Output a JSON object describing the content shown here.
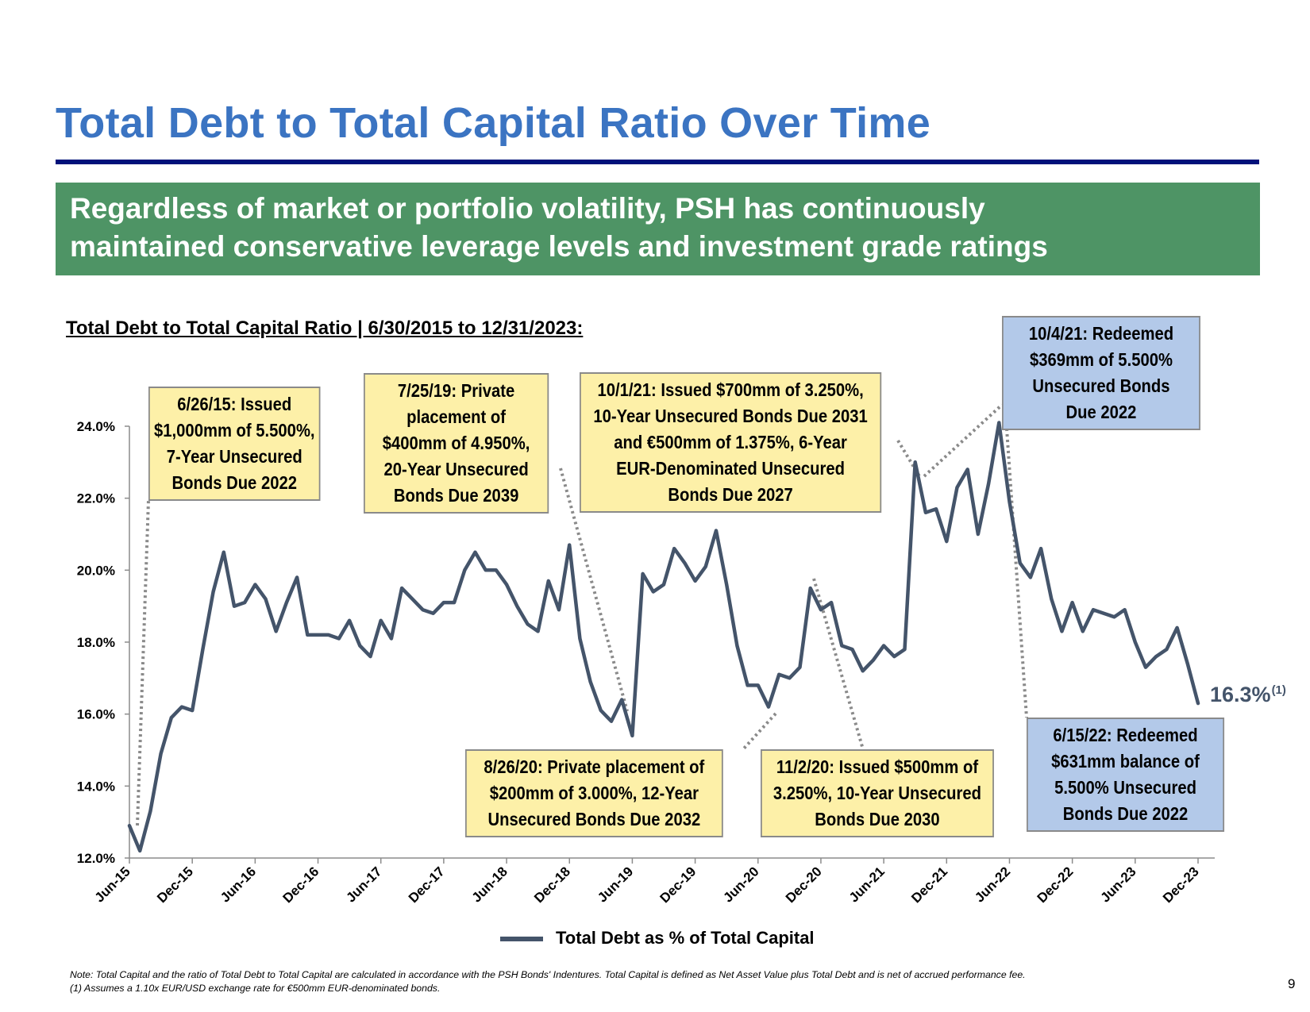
{
  "title": "Total Debt to Total Capital Ratio Over Time",
  "banner": {
    "line1": "Regardless of market or portfolio volatility, PSH has continuously",
    "line2": "maintained conservative leverage levels and investment grade ratings"
  },
  "subtitle": "Total Debt to Total Capital Ratio | 6/30/2015 to 12/31/2023:",
  "callouts": {
    "c1": [
      "6/26/15: Issued",
      "$1,000mm of 5.500%,",
      "7-Year Unsecured",
      "Bonds Due 2022"
    ],
    "c2": [
      "7/25/19: Private",
      "placement of",
      "$400mm of 4.950%,",
      "20-Year Unsecured",
      "Bonds Due 2039"
    ],
    "c3": [
      "10/1/21: Issued $700mm of 3.250%,",
      "10-Year Unsecured Bonds Due 2031",
      "and €500mm of 1.375%, 6-Year",
      "EUR-Denominated Unsecured",
      "Bonds Due 2027"
    ],
    "c4": [
      "10/4/21: Redeemed",
      "$369mm of 5.500%",
      "Unsecured Bonds",
      "Due 2022"
    ],
    "c5": [
      "8/26/20: Private placement of",
      "$200mm of 3.000%, 12-Year",
      "Unsecured Bonds Due 2032"
    ],
    "c6": [
      "11/2/20: Issued $500mm of",
      "3.250%, 10-Year Unsecured",
      "Bonds Due 2030"
    ],
    "c7": [
      "6/15/22: Redeemed",
      "$631mm balance of",
      "5.500% Unsecured",
      "Bonds Due 2022"
    ]
  },
  "end_label": {
    "value": "16.3%",
    "footnote": "(1)"
  },
  "legend_label": "Total Debt as % of Total Capital",
  "notes": [
    "Note: Total Capital and the ratio of Total Debt to Total Capital are calculated in accordance with the PSH Bonds' Indentures. Total Capital is defined as Net Asset Value plus Total Debt and is net of accrued performance fee.",
    "(1) Assumes a 1.10x EUR/USD exchange rate for €500mm EUR-denominated bonds."
  ],
  "page_number": "9",
  "colors": {
    "series": "#44546a",
    "title": "#3b74c2",
    "banner": "#4e9465",
    "rule": "#00127a"
  },
  "chart_data": {
    "type": "line",
    "title": "Total Debt to Total Capital Ratio | 6/30/2015 to 12/31/2023:",
    "series": [
      {
        "name": "Total Debt as % of Total Capital",
        "values": [
          12.9,
          12.2,
          13.3,
          14.9,
          15.9,
          16.2,
          16.1,
          17.8,
          19.4,
          20.5,
          19.0,
          19.1,
          19.6,
          19.2,
          18.3,
          19.1,
          19.8,
          18.2,
          18.2,
          18.2,
          18.1,
          18.6,
          17.9,
          17.6,
          18.6,
          18.1,
          19.5,
          19.2,
          18.9,
          18.8,
          19.1,
          19.1,
          20.0,
          20.5,
          20.0,
          20.0,
          19.6,
          19.0,
          18.5,
          18.3,
          19.7,
          18.9,
          20.7,
          18.1,
          16.9,
          16.1,
          15.8,
          16.4,
          15.4,
          19.9,
          19.4,
          19.6,
          20.6,
          20.2,
          19.7,
          20.1,
          21.1,
          19.6,
          17.9,
          16.8,
          16.8,
          16.2,
          17.1,
          17.0,
          17.3,
          19.5,
          18.9,
          19.1,
          17.9,
          17.8,
          17.2,
          17.5,
          17.9,
          17.6,
          17.8,
          23.0,
          21.6,
          21.7,
          20.8,
          22.3,
          22.8,
          21.0,
          22.4,
          24.1,
          21.9,
          20.2,
          19.8,
          20.6,
          19.2,
          18.3,
          19.1,
          18.3,
          18.9,
          18.8,
          18.7,
          18.9,
          18.0,
          17.3,
          17.6,
          17.8,
          18.4,
          17.4,
          16.3
        ]
      }
    ],
    "x_start": "Jun-15",
    "x_end": "Dec-23",
    "x_ticks": [
      "Jun-15",
      "Dec-15",
      "Jun-16",
      "Dec-16",
      "Jun-17",
      "Dec-17",
      "Jun-18",
      "Dec-18",
      "Jun-19",
      "Dec-19",
      "Jun-20",
      "Dec-20",
      "Jun-21",
      "Dec-21",
      "Jun-22",
      "Dec-22",
      "Jun-23",
      "Dec-23"
    ],
    "y_ticks": [
      "12.0%",
      "14.0%",
      "16.0%",
      "18.0%",
      "20.0%",
      "22.0%",
      "24.0%"
    ],
    "ylim": [
      12,
      24
    ],
    "xlabel": "",
    "ylabel": ""
  }
}
